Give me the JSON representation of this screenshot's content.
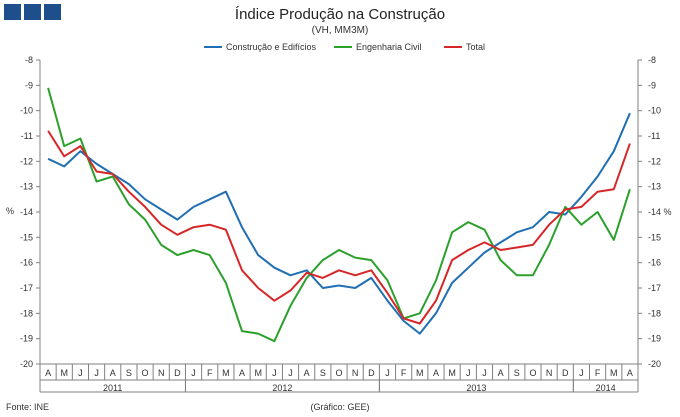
{
  "header": {
    "title": "Índice Produção na Construção",
    "subtitle": "(VH, MM3M)"
  },
  "footer": {
    "source": "Fonte: INE",
    "credit": "(Gráfico: GEE)"
  },
  "colors": {
    "construcao": "#1f6fb2",
    "engenharia": "#2ca02c",
    "total": "#d62728",
    "logo": "#1f4e8c",
    "axis": "#808080"
  },
  "chart_data": {
    "type": "line",
    "title": "Índice Produção na Construção",
    "subtitle": "(VH, MM3M)",
    "ylabel": "%",
    "ylabel_right": "%",
    "ylim": [
      -20,
      -8
    ],
    "yticks": [
      "-8",
      "-9",
      "-10",
      "-11",
      "-12",
      "-13",
      "-14",
      "-15",
      "-16",
      "-17",
      "-18",
      "-19",
      "-20"
    ],
    "right_ticks": [
      "-8",
      "-9",
      "-10",
      "-11",
      "-12",
      "-13",
      "-14 %",
      "-15",
      "-16",
      "-17",
      "-18",
      "-19",
      "-20"
    ],
    "categories": [
      "A",
      "M",
      "J",
      "J",
      "A",
      "S",
      "O",
      "N",
      "D",
      "J",
      "F",
      "M",
      "A",
      "M",
      "J",
      "J",
      "A",
      "S",
      "O",
      "N",
      "D",
      "J",
      "F",
      "M",
      "A",
      "M",
      "J",
      "J",
      "A",
      "S",
      "O",
      "N",
      "D",
      "J",
      "F",
      "M",
      "A"
    ],
    "years": [
      {
        "label": "2011",
        "start": 0,
        "end": 8
      },
      {
        "label": "2012",
        "start": 9,
        "end": 20
      },
      {
        "label": "2013",
        "start": 21,
        "end": 32
      },
      {
        "label": "2014",
        "start": 33,
        "end": 36
      }
    ],
    "legend_position": "top-center",
    "series": [
      {
        "name": "Construção e Edifícios",
        "color": "#1f6fb2",
        "values": [
          -11.9,
          -12.2,
          -11.6,
          -12.1,
          -12.5,
          -12.9,
          -13.5,
          -13.9,
          -14.3,
          -13.8,
          -13.5,
          -13.2,
          -14.6,
          -15.7,
          -16.2,
          -16.5,
          -16.3,
          -17.0,
          -16.9,
          -17.0,
          -16.6,
          -17.5,
          -18.3,
          -18.8,
          -18.0,
          -16.8,
          -16.2,
          -15.6,
          -15.2,
          -14.8,
          -14.6,
          -14.0,
          -14.1,
          -13.4,
          -12.6,
          -11.6,
          -10.1
        ]
      },
      {
        "name": "Engenharia Civil",
        "color": "#2ca02c",
        "values": [
          -9.1,
          -11.4,
          -11.1,
          -12.8,
          -12.6,
          -13.7,
          -14.3,
          -15.3,
          -15.7,
          -15.5,
          -15.7,
          -16.8,
          -18.7,
          -18.8,
          -19.1,
          -17.7,
          -16.6,
          -15.9,
          -15.5,
          -15.8,
          -15.9,
          -16.7,
          -18.2,
          -18.0,
          -16.7,
          -14.8,
          -14.4,
          -14.7,
          -15.9,
          -16.5,
          -16.5,
          -15.3,
          -13.8,
          -14.5,
          -14.0,
          -15.1,
          -13.1
        ]
      },
      {
        "name": "Total",
        "color": "#d62728",
        "values": [
          -10.8,
          -11.8,
          -11.4,
          -12.4,
          -12.5,
          -13.2,
          -13.8,
          -14.5,
          -14.9,
          -14.6,
          -14.5,
          -14.7,
          -16.3,
          -17.0,
          -17.5,
          -17.1,
          -16.4,
          -16.6,
          -16.3,
          -16.5,
          -16.3,
          -17.2,
          -18.2,
          -18.4,
          -17.5,
          -15.9,
          -15.5,
          -15.2,
          -15.5,
          -15.4,
          -15.3,
          -14.5,
          -13.9,
          -13.8,
          -13.2,
          -13.1,
          -11.3
        ]
      }
    ]
  }
}
